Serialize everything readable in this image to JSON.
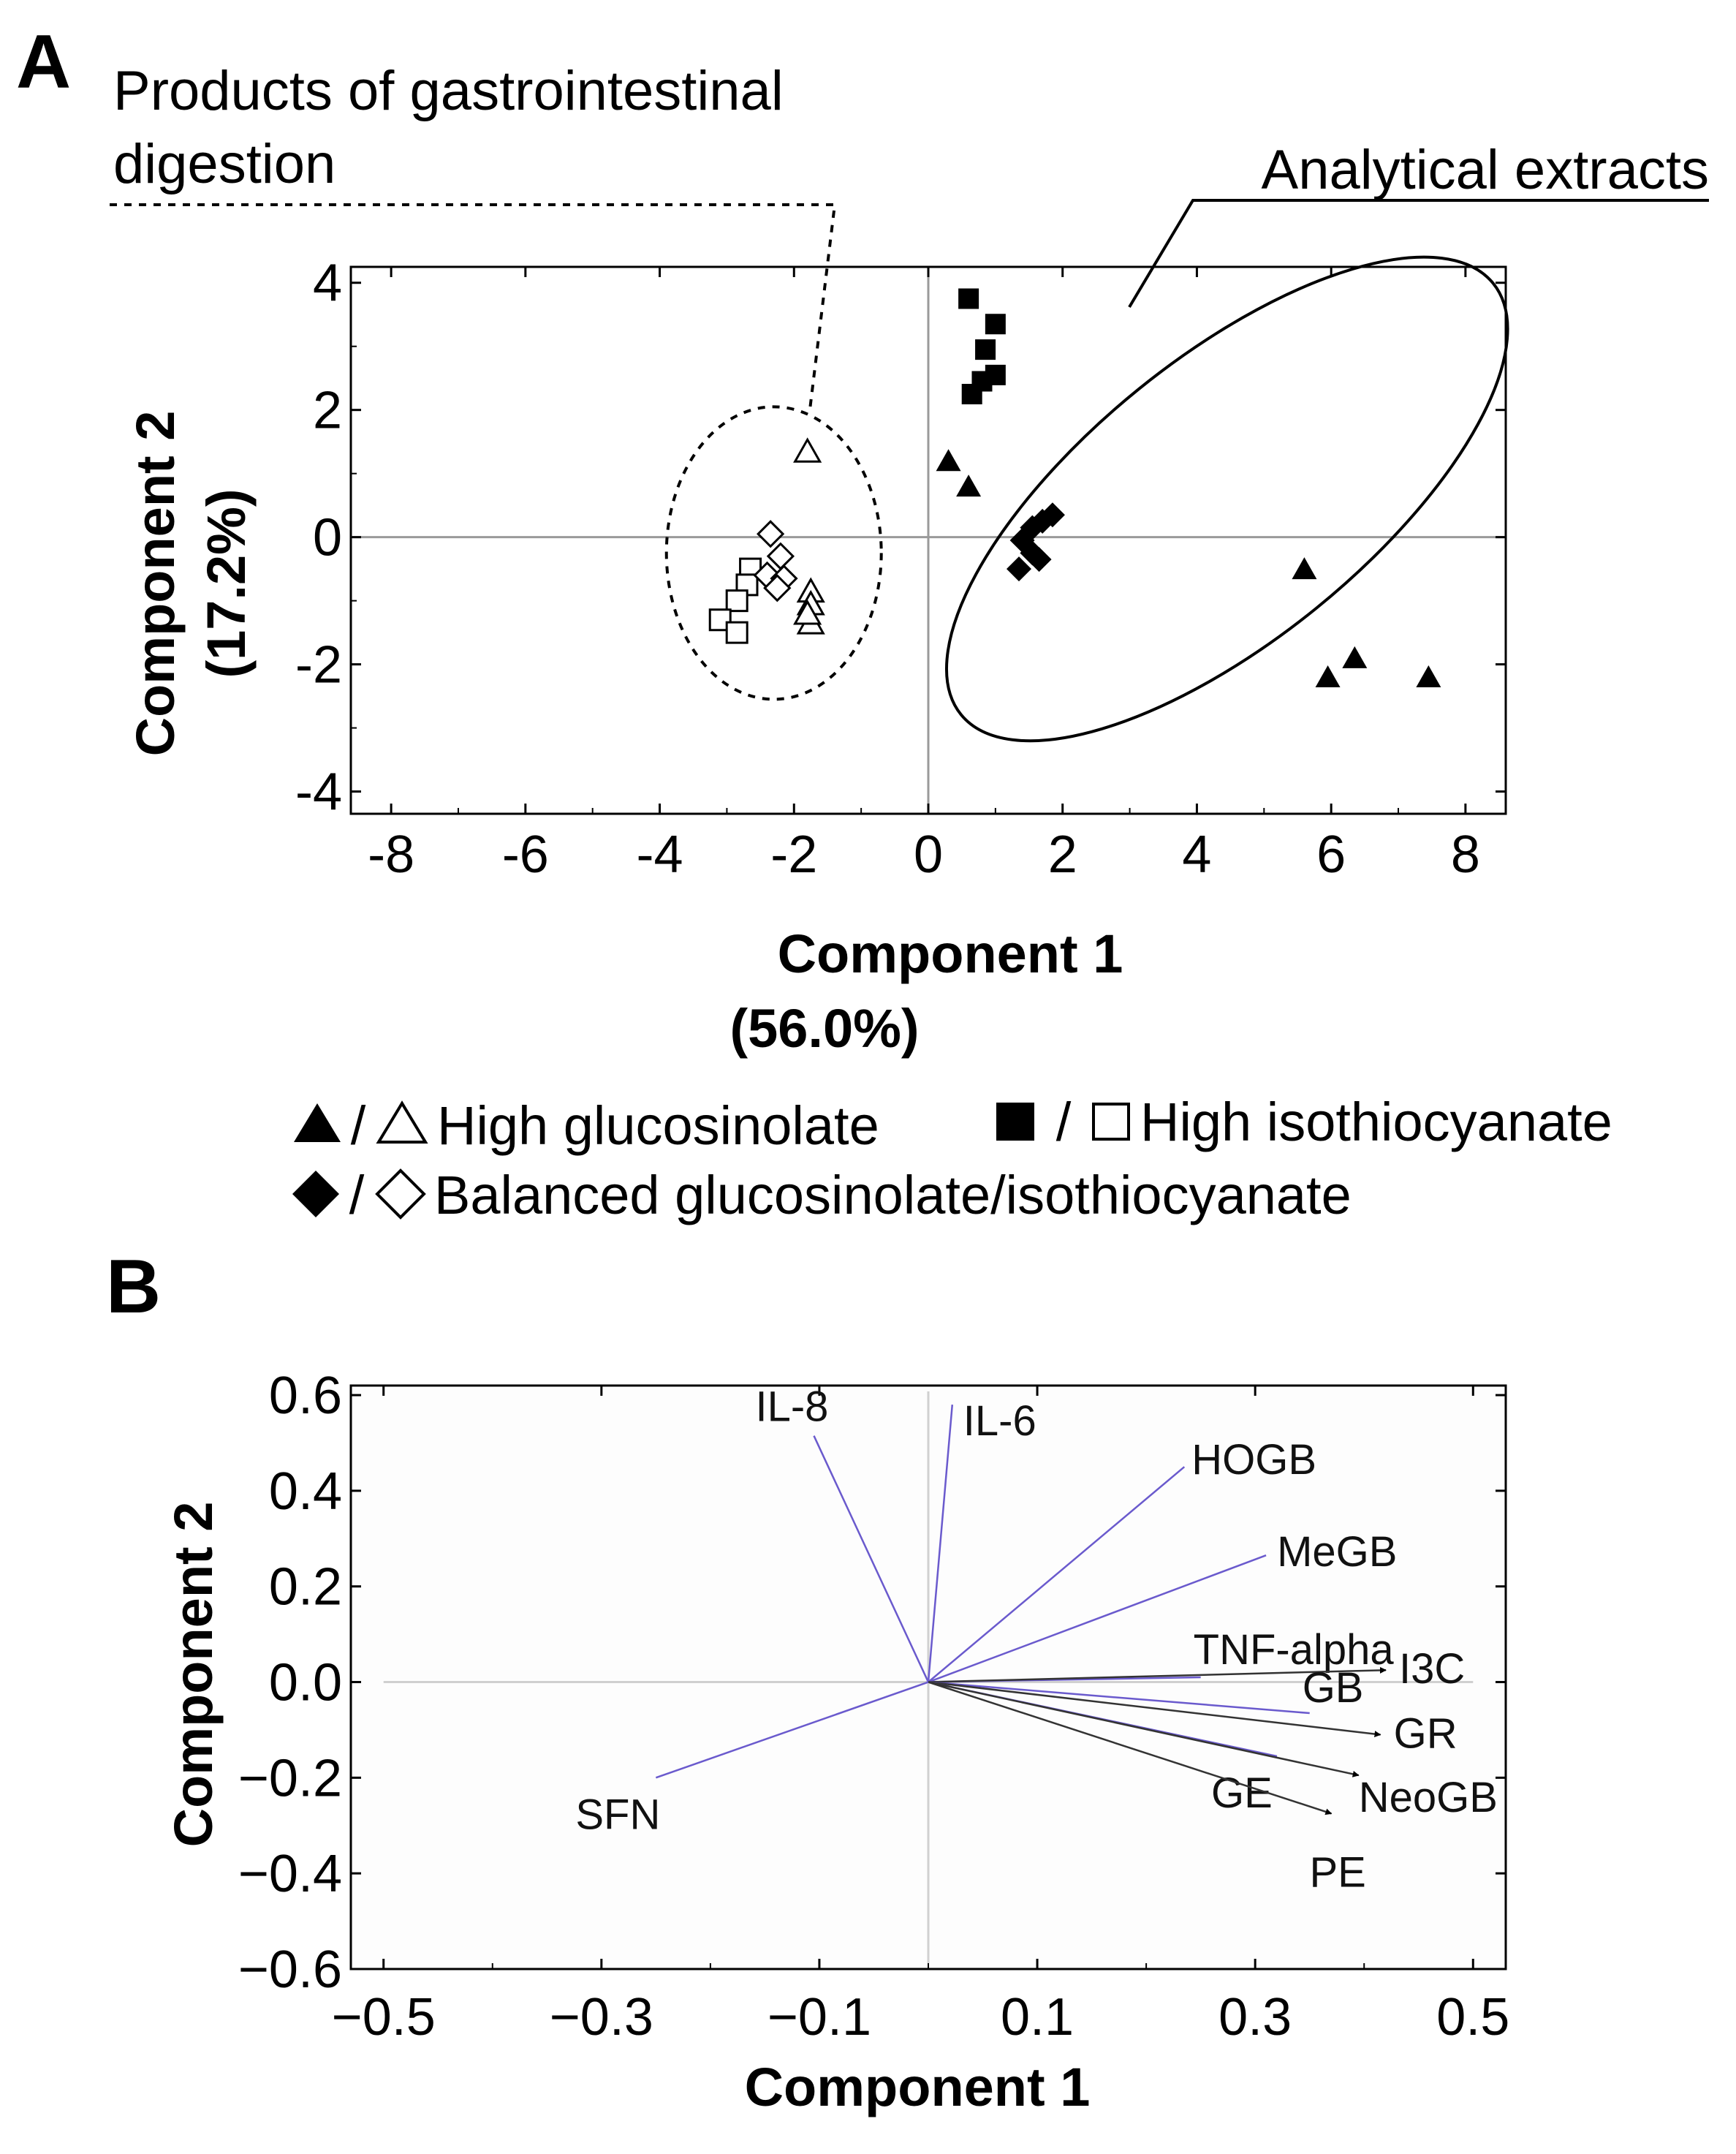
{
  "colors": {
    "ink": "#000000",
    "axis_gray": "#9a9a9a",
    "vector": "#6a5acd",
    "plot_bg": "#fdfdfd"
  },
  "chart_data": [
    {
      "panel": "A",
      "type": "scatter",
      "xlabel": [
        "Component 1",
        "(56.0%)"
      ],
      "ylabel": [
        "Component 2",
        "(17.2%)"
      ],
      "xlim": [
        -8.6,
        8.6
      ],
      "ylim": [
        -4.35,
        4.25
      ],
      "xticks": [
        -8,
        -6,
        -4,
        -2,
        0,
        2,
        4,
        6,
        8
      ],
      "xtick_labels": [
        "-8",
        "-6",
        "-4",
        "-2",
        "0",
        "2",
        "4",
        "6",
        "8"
      ],
      "yticks": [
        4,
        2,
        0,
        -2,
        -4
      ],
      "ytick_labels": [
        "4",
        "2",
        "0",
        "-2",
        "-4"
      ],
      "annotations": {
        "gi": [
          "Products of gastrointestinal",
          "digestion"
        ],
        "analytical": "Analytical extracts"
      },
      "groups": {
        "gi": {
          "cx": -2.3,
          "cy": -0.25,
          "rx": 1.6,
          "ry": 2.3,
          "angle": 0
        },
        "analytical": {
          "cx": 4.45,
          "cy": 0.6,
          "rx": 5.1,
          "ry": 2.1,
          "angle": -39
        }
      },
      "series": [
        {
          "name": "High glucosinolate (analytical extract)",
          "marker": "triangle",
          "filled": true,
          "points": [
            [
              0.3,
              1.2
            ],
            [
              0.6,
              0.8
            ],
            [
              5.6,
              -0.5
            ],
            [
              5.95,
              -2.2
            ],
            [
              6.35,
              -1.9
            ],
            [
              7.45,
              -2.2
            ]
          ]
        },
        {
          "name": "High glucosinolate (GI digestion)",
          "marker": "triangle",
          "filled": false,
          "points": [
            [
              -1.8,
              1.35
            ],
            [
              -1.75,
              -0.85
            ],
            [
              -1.75,
              -1.05
            ],
            [
              -1.75,
              -1.35
            ],
            [
              -1.8,
              -1.2
            ]
          ]
        },
        {
          "name": "High isothiocyanate (analytical extract)",
          "marker": "square",
          "filled": true,
          "points": [
            [
              0.6,
              3.75
            ],
            [
              1.0,
              3.35
            ],
            [
              0.85,
              2.95
            ],
            [
              1.0,
              2.55
            ],
            [
              0.8,
              2.45
            ],
            [
              0.65,
              2.25
            ]
          ]
        },
        {
          "name": "High isothiocyanate (GI digestion)",
          "marker": "square",
          "filled": false,
          "points": [
            [
              -2.65,
              -0.5
            ],
            [
              -2.7,
              -0.75
            ],
            [
              -2.85,
              -1.0
            ],
            [
              -3.1,
              -1.3
            ],
            [
              -2.85,
              -1.5
            ]
          ]
        },
        {
          "name": "Balanced glucosinolate/isothiocyanate (analytical extract)",
          "marker": "diamond",
          "filled": true,
          "points": [
            [
              1.85,
              0.35
            ],
            [
              1.7,
              0.25
            ],
            [
              1.55,
              0.15
            ],
            [
              1.4,
              -0.05
            ],
            [
              1.55,
              -0.25
            ],
            [
              1.65,
              -0.35
            ],
            [
              1.35,
              -0.5
            ]
          ]
        },
        {
          "name": "Balanced glucosinolate/isothiocyanate (GI digestion)",
          "marker": "diamond",
          "filled": false,
          "points": [
            [
              -2.35,
              0.05
            ],
            [
              -2.2,
              -0.3
            ],
            [
              -2.4,
              -0.6
            ],
            [
              -2.15,
              -0.65
            ],
            [
              -2.25,
              -0.8
            ]
          ]
        }
      ],
      "legend": {
        "row1": [
          {
            "sep": "/",
            "label": "High glucosinolate"
          },
          {
            "sep": "/",
            "label": "High isothiocyanate"
          }
        ],
        "row2": [
          {
            "sep": "/",
            "label": "Balanced glucosinolate/isothiocyanate"
          }
        ]
      }
    },
    {
      "panel": "B",
      "type": "biplot",
      "xlabel": "Component 1",
      "ylabel": "Component 2",
      "xlim": [
        -0.53,
        0.53
      ],
      "ylim": [
        -0.6,
        0.62
      ],
      "xticks": [
        -0.5,
        -0.3,
        -0.1,
        0.1,
        0.3,
        0.5
      ],
      "xtick_labels": [
        "−0.5",
        "−0.3",
        "−0.1",
        "0.1",
        "0.3",
        "0.5"
      ],
      "yticks": [
        0.6,
        0.4,
        0.2,
        0.0,
        -0.2,
        -0.4,
        -0.6
      ],
      "ytick_labels": [
        "0.6",
        "0.4",
        "0.2",
        "0.0",
        "−0.2",
        "−0.4",
        "−0.6"
      ],
      "loadings": [
        {
          "label": "IL-8",
          "x": -0.105,
          "y": 0.515,
          "arrow": false
        },
        {
          "label": "IL-6",
          "x": 0.022,
          "y": 0.58,
          "arrow": false
        },
        {
          "label": "HOGB",
          "x": 0.235,
          "y": 0.45,
          "arrow": false
        },
        {
          "label": "MeGB",
          "x": 0.31,
          "y": 0.265,
          "arrow": false
        },
        {
          "label": "TNF-alpha",
          "x": 0.25,
          "y": 0.01,
          "arrow": false
        },
        {
          "label": "I3C",
          "x": 0.42,
          "y": 0.025,
          "arrow": true
        },
        {
          "label": "GB",
          "x": 0.35,
          "y": -0.065,
          "arrow": false
        },
        {
          "label": "GR",
          "x": 0.415,
          "y": -0.11,
          "arrow": true
        },
        {
          "label": "GE",
          "x": 0.32,
          "y": -0.155,
          "arrow": false
        },
        {
          "label": "NeoGB",
          "x": 0.395,
          "y": -0.195,
          "arrow": true
        },
        {
          "label": "PE",
          "x": 0.37,
          "y": -0.275,
          "arrow": true
        },
        {
          "label": "SFN",
          "x": -0.25,
          "y": -0.2,
          "arrow": false
        }
      ]
    }
  ],
  "panel_labels": {
    "a": "A",
    "b": "B"
  }
}
